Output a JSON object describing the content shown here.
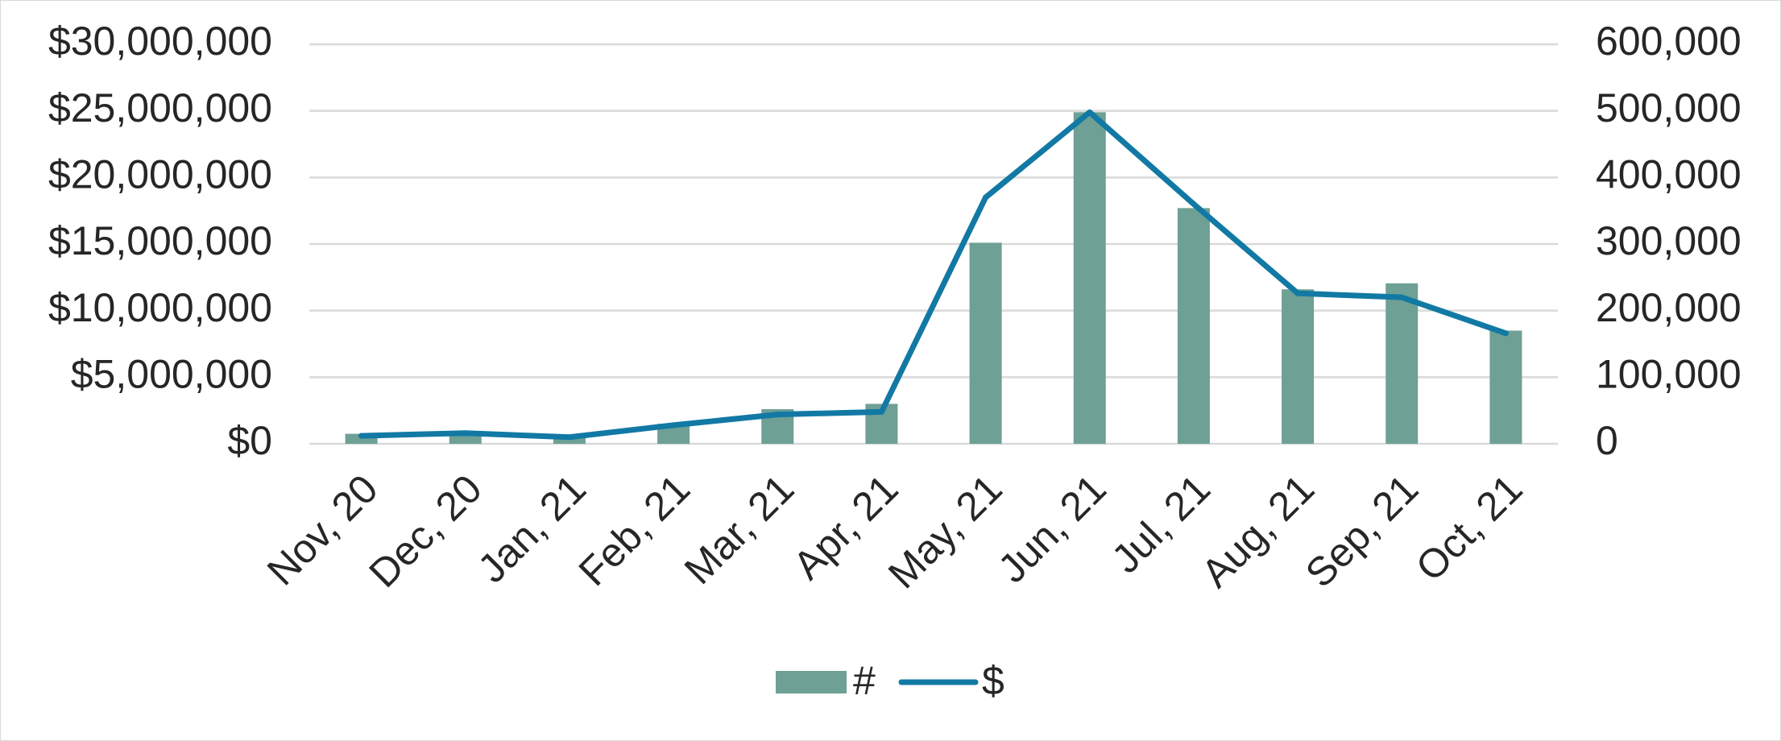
{
  "chart_data": {
    "type": "bar",
    "categories": [
      "Nov, 20",
      "Dec, 20",
      "Jan, 21",
      "Feb, 21",
      "Mar, 21",
      "Apr, 21",
      "May, 21",
      "Jun, 21",
      "Jul, 21",
      "Aug, 21",
      "Sep, 21",
      "Oct, 21"
    ],
    "series": [
      {
        "name": "#",
        "type": "bar",
        "axis": "right",
        "color": "#6ea095",
        "values": [
          15000,
          19000,
          13000,
          30000,
          52000,
          60000,
          302000,
          498000,
          354000,
          232000,
          241000,
          170000
        ]
      },
      {
        "name": "$",
        "type": "line",
        "axis": "left",
        "color": "#1279a4",
        "values": [
          600000,
          800000,
          500000,
          1400000,
          2200000,
          2400000,
          18500000,
          24900000,
          18000000,
          11300000,
          11000000,
          8300000
        ]
      }
    ],
    "y_left": {
      "ylim": [
        0,
        30000000
      ],
      "ticks": [
        0,
        5000000,
        10000000,
        15000000,
        20000000,
        25000000,
        30000000
      ],
      "tick_labels": [
        "$0",
        "$5,000,000",
        "$10,000,000",
        "$15,000,000",
        "$20,000,000",
        "$25,000,000",
        "$30,000,000"
      ]
    },
    "y_right": {
      "ylim": [
        0,
        600000
      ],
      "ticks": [
        0,
        100000,
        200000,
        300000,
        400000,
        500000,
        600000
      ],
      "tick_labels": [
        "0",
        "100,000",
        "200,000",
        "300,000",
        "400,000",
        "500,000",
        "600,000"
      ]
    },
    "grid": true,
    "legend": {
      "position": "bottom",
      "entries": [
        "#",
        "$"
      ]
    },
    "title": "",
    "xlabel": "",
    "ylabel": ""
  }
}
